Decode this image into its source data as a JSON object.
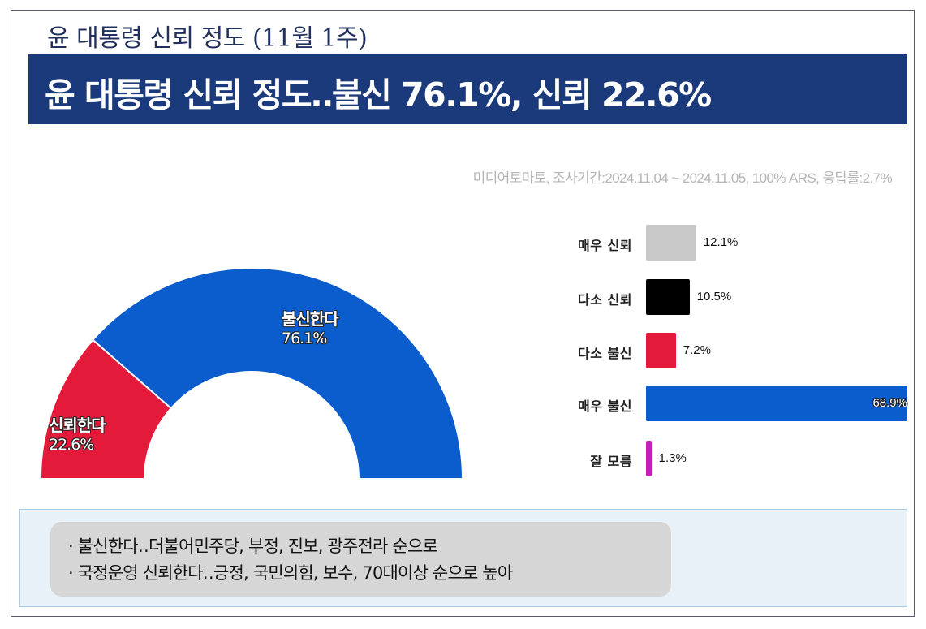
{
  "supertitle": "윤 대통령 신뢰 정도 (11월 1주)",
  "headline": "윤 대통령 신뢰 정도‥불신 76.1%, 신뢰 22.6%",
  "source": "미디어토마토, 조사기간:2024.11.04 ~ 2024.11.05, 100% ARS, 응답률:2.7%",
  "colors": {
    "headline_bg": "#1b3a7c",
    "distrust": "#0b5ccc",
    "trust": "#e41a3a",
    "very_trust": "#c8c8c8",
    "somewhat_trust": "#000000",
    "somewhat_distrust": "#e41a3a",
    "very_distrust": "#0b5ccc",
    "dont_know": "#c71fb4"
  },
  "chart_data": [
    {
      "type": "pie",
      "variant": "half-donut",
      "categories": [
        "신뢰한다",
        "불신한다"
      ],
      "values": [
        22.6,
        76.1
      ],
      "value_labels": [
        "22.6%",
        "76.1%"
      ],
      "colors": [
        "#e41a3a",
        "#0b5ccc"
      ]
    },
    {
      "type": "bar",
      "orientation": "horizontal",
      "categories": [
        "매우 신뢰",
        "다소 신뢰",
        "다소 불신",
        "매우 불신",
        "잘 모름"
      ],
      "values": [
        12.1,
        10.5,
        7.2,
        68.9,
        1.3
      ],
      "value_labels": [
        "12.1%",
        "10.5%",
        "7.2%",
        "68.9%",
        "1.3%"
      ],
      "colors": [
        "#c8c8c8",
        "#000000",
        "#e41a3a",
        "#0b5ccc",
        "#c71fb4"
      ],
      "xlim": [
        0,
        63
      ]
    }
  ],
  "notes": [
    "· 불신한다‥더불어민주당, 부정, 진보, 광주전라 순으로",
    "· 국정운영 신뢰한다‥긍정, 국민의힘, 보수, 70대이상 순으로 높아"
  ]
}
